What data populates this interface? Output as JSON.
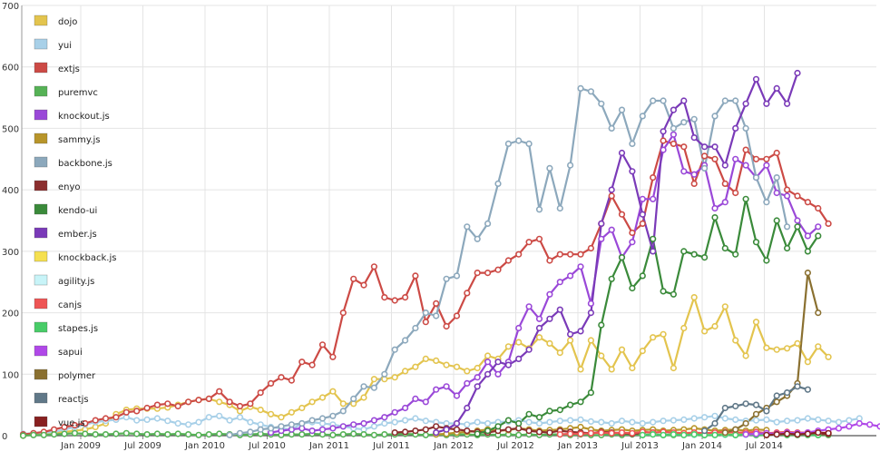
{
  "chart_data": {
    "type": "line",
    "x_ticks": [
      "Jan 2009",
      "Jul 2009",
      "Jan 2010",
      "Jul 2010",
      "Jan 2011",
      "Jul 2011",
      "Jan 2012",
      "Jul 2012",
      "Jan 2013",
      "Jul 2013",
      "Jan 2014",
      "Jul 2014"
    ],
    "y_ticks": [
      0,
      100,
      200,
      300,
      400,
      500,
      600,
      700
    ],
    "ylim": [
      0,
      700
    ],
    "grid": true,
    "legend_position": "left",
    "series": [
      {
        "name": "dojo",
        "color": "#e3c44e",
        "start": 0,
        "values": [
          0,
          2,
          3,
          4,
          6,
          8,
          10,
          14,
          20,
          35,
          42,
          44,
          44,
          44,
          46,
          50,
          55,
          58,
          60,
          55,
          50,
          40,
          47,
          42,
          35,
          30,
          38,
          45,
          55,
          62,
          72,
          52,
          52,
          62,
          92,
          92,
          95,
          105,
          112,
          125,
          122,
          115,
          112,
          105,
          110,
          130,
          125,
          145,
          152,
          142,
          160,
          150,
          135,
          155,
          108,
          155,
          130,
          108,
          140,
          110,
          138,
          160,
          165,
          110,
          175,
          225,
          170,
          178,
          210,
          155,
          130,
          185,
          143,
          140,
          142,
          150,
          120,
          145,
          128
        ]
      },
      {
        "name": "yui",
        "color": "#a8d0e8",
        "start": 0,
        "values": [
          3,
          4,
          5,
          6,
          10,
          14,
          18,
          22,
          24,
          26,
          30,
          25,
          26,
          28,
          24,
          20,
          18,
          22,
          30,
          32,
          25,
          30,
          22,
          18,
          14,
          12,
          10,
          20,
          22,
          20,
          18,
          15,
          12,
          10,
          15,
          20,
          22,
          25,
          28,
          24,
          22,
          20,
          20,
          18,
          22,
          20,
          22,
          23,
          25,
          22,
          20,
          22,
          24,
          25,
          26,
          23,
          22,
          20,
          24,
          22,
          20,
          22,
          24,
          25,
          26,
          28,
          30,
          32,
          28,
          26,
          24,
          25,
          26,
          22,
          24,
          25,
          28,
          26,
          24,
          22,
          25,
          28
        ]
      },
      {
        "name": "extjs",
        "color": "#cc4a45",
        "start": 0,
        "values": [
          2,
          4,
          6,
          10,
          14,
          17,
          20,
          25,
          28,
          30,
          38,
          40,
          45,
          50,
          52,
          48,
          55,
          58,
          60,
          72,
          55,
          48,
          52,
          70,
          85,
          95,
          90,
          120,
          115,
          148,
          128,
          200,
          255,
          245,
          275,
          225,
          220,
          225,
          260,
          185,
          215,
          178,
          195,
          232,
          265,
          265,
          270,
          285,
          295,
          315,
          320,
          285,
          295,
          295,
          295,
          305,
          345,
          390,
          360,
          330,
          345,
          420,
          480,
          475,
          470,
          410,
          455,
          450,
          410,
          395,
          465,
          450,
          450,
          460,
          400,
          390,
          380,
          370,
          345
        ]
      },
      {
        "name": "puremvc",
        "color": "#56b256",
        "start": 0,
        "values": [
          0,
          1,
          1,
          2,
          3,
          4,
          3,
          2,
          2,
          3,
          4,
          3,
          2,
          3,
          2,
          3,
          2,
          1,
          2,
          3,
          2,
          1,
          2,
          3,
          2,
          1,
          2,
          2,
          3,
          2,
          1,
          2,
          3,
          2,
          1,
          2,
          2,
          3,
          2,
          1,
          2,
          1,
          2,
          2,
          1,
          2,
          1,
          2,
          1,
          2,
          1,
          2,
          2,
          1,
          2,
          1,
          1,
          2,
          1,
          2,
          1,
          2,
          1,
          1,
          2,
          1,
          1,
          2,
          1,
          1,
          2,
          1,
          1,
          2,
          1,
          1,
          2,
          1,
          1
        ]
      },
      {
        "name": "knockout.js",
        "color": "#9a48d8",
        "start": 24,
        "values": [
          5,
          8,
          10,
          12,
          8,
          10,
          12,
          15,
          18,
          20,
          25,
          30,
          38,
          45,
          60,
          55,
          75,
          80,
          65,
          85,
          95,
          120,
          100,
          120,
          175,
          210,
          190,
          230,
          250,
          260,
          275,
          215,
          320,
          335,
          290,
          315,
          385,
          385,
          465,
          490,
          430,
          425,
          440,
          370,
          380,
          450,
          440,
          420,
          440,
          395,
          390,
          350,
          325,
          340
        ]
      },
      {
        "name": "sammy.js",
        "color": "#b8952a",
        "start": 40,
        "values": [
          2,
          3,
          5,
          6,
          8,
          10,
          8,
          9,
          12,
          10,
          8,
          9,
          10,
          12,
          14,
          10,
          8,
          9,
          10,
          8,
          9,
          10,
          8,
          9,
          10,
          12,
          10,
          8,
          9,
          10,
          8,
          10,
          9
        ]
      },
      {
        "name": "backbone.js",
        "color": "#8ca8bc",
        "start": 20,
        "values": [
          1,
          4,
          6,
          10,
          12,
          15,
          18,
          20,
          25,
          28,
          32,
          40,
          60,
          80,
          78,
          100,
          140,
          155,
          175,
          200,
          195,
          255,
          260,
          340,
          320,
          345,
          410,
          475,
          480,
          475,
          368,
          435,
          370,
          440,
          565,
          560,
          540,
          500,
          530,
          475,
          520,
          545,
          545,
          500,
          510,
          515,
          435,
          520,
          545,
          545,
          500,
          420,
          380,
          420,
          340
        ]
      },
      {
        "name": "enyo",
        "color": "#8b2e2e",
        "start": 36,
        "values": [
          5,
          6,
          8,
          10,
          15,
          12,
          10,
          8,
          6,
          5,
          8,
          10,
          12,
          8,
          6,
          5,
          8,
          6,
          5,
          4,
          6,
          5,
          4,
          3,
          4,
          5,
          3,
          2,
          3,
          2,
          3,
          2,
          3,
          2,
          3,
          2,
          3,
          2,
          2,
          3,
          2,
          2,
          3
        ]
      },
      {
        "name": "kendo-ui",
        "color": "#3a8a3a",
        "start": 44,
        "values": [
          3,
          8,
          15,
          25,
          20,
          35,
          30,
          40,
          42,
          50,
          55,
          70,
          180,
          255,
          290,
          240,
          260,
          320,
          235,
          230,
          300,
          295,
          290,
          355,
          305,
          295,
          385,
          315,
          285,
          350,
          305,
          340,
          300,
          325
        ]
      },
      {
        "name": "ember.js",
        "color": "#7a3ab8",
        "start": 40,
        "values": [
          5,
          10,
          20,
          45,
          80,
          100,
          120,
          115,
          125,
          140,
          175,
          190,
          205,
          165,
          170,
          200,
          345,
          400,
          460,
          430,
          360,
          300,
          495,
          530,
          545,
          485,
          470,
          470,
          440,
          500,
          540,
          580,
          540,
          565,
          540,
          590
        ]
      },
      {
        "name": "knockback.js",
        "color": "#f5e050",
        "start": 60,
        "values": [
          2,
          3,
          4,
          3,
          5,
          4,
          3,
          2,
          3,
          2,
          2,
          3,
          2,
          3,
          2
        ]
      },
      {
        "name": "agility.js",
        "color": "#c8f4f8",
        "start": 60,
        "values": [
          2,
          2,
          3,
          2,
          2,
          1,
          2,
          2,
          1,
          2,
          1,
          2,
          1,
          1
        ]
      },
      {
        "name": "canjs",
        "color": "#ee5555",
        "start": 52,
        "values": [
          2,
          3,
          3,
          4,
          5,
          4,
          5,
          4,
          6,
          5,
          6,
          5,
          4,
          5,
          4,
          5,
          6,
          5,
          5,
          6,
          4,
          5,
          6,
          5,
          5,
          4,
          5
        ]
      },
      {
        "name": "stapes.js",
        "color": "#48cc68",
        "start": 60,
        "values": [
          1,
          2,
          1,
          2,
          1,
          2,
          1,
          1,
          2,
          1,
          2,
          1,
          1,
          2,
          1,
          2,
          1,
          1
        ]
      },
      {
        "name": "sapui",
        "color": "#b048e8",
        "start": 70,
        "values": [
          2,
          3,
          4,
          3,
          5,
          4,
          5,
          8,
          10,
          12,
          15,
          20,
          18,
          15
        ]
      },
      {
        "name": "polymer",
        "color": "#8a7030",
        "start": 68,
        "values": [
          5,
          10,
          20,
          35,
          45,
          55,
          65,
          85,
          265,
          200
        ]
      },
      {
        "name": "reactjs",
        "color": "#607888",
        "start": 66,
        "values": [
          8,
          20,
          45,
          48,
          52,
          50,
          40,
          65,
          70,
          80,
          75
        ]
      },
      {
        "name": "vue.js",
        "color": "#882020",
        "start": 72,
        "values": [
          1,
          2,
          3,
          2,
          3,
          5,
          4
        ]
      }
    ]
  }
}
